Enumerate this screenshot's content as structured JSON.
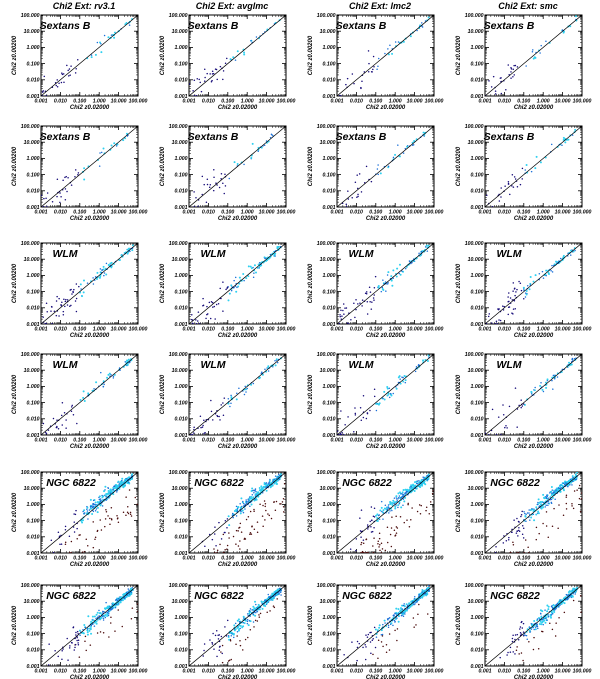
{
  "colors": {
    "light_blue": "#2fd0f0",
    "mid_blue": "#1a6fd8",
    "dark_blue": "#150a78",
    "dark_red": "#4a0b0b",
    "axes": "#000000",
    "diagonal": "#000000"
  },
  "chart_data": {
    "type": "scatter",
    "scale": "log",
    "grid": false,
    "x_range": [
      0.001,
      100.0
    ],
    "y_range": [
      0.001,
      100.0
    ],
    "x_ticks": [
      "0.001",
      "0.010",
      "0.100",
      "1.000",
      "10.000",
      "100.000"
    ],
    "y_ticks": [
      "0.001",
      "0.010",
      "0.100",
      "1.000",
      "10.000",
      "100.000"
    ],
    "xlabel": "Chi2 z0.02000",
    "ylabel": "Chi2 z0.00200",
    "column_titles": [
      "Chi2  Ext: rv3.1",
      "Chi2  Ext: avglmc",
      "Chi2  Ext: lmc2",
      "Chi2  Ext: smc"
    ],
    "row_labels": [
      "Sextans B",
      "Sextans B",
      "WLM",
      "WLM",
      "NGC 6822",
      "NGC 6822"
    ],
    "reference_line": "y = x",
    "point_counts": [
      50,
      50,
      110,
      80,
      320,
      320
    ]
  }
}
